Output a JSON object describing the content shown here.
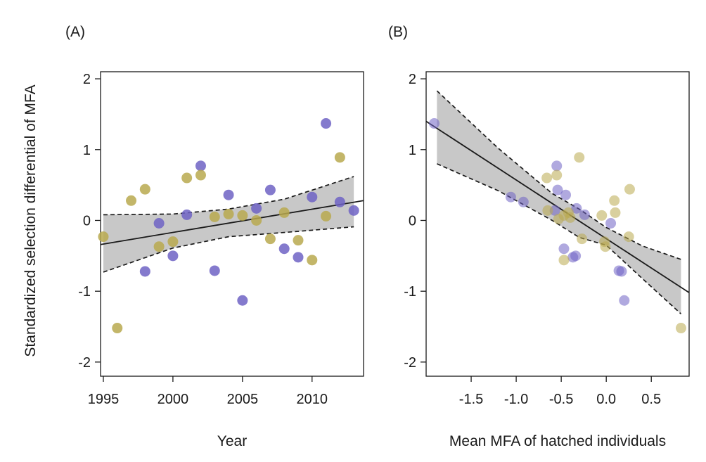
{
  "colors": {
    "purple": "#6f63c4",
    "gold": "#b9a94f",
    "band": "#c8c8c8"
  },
  "shared_ylabel": "Standardized selection differential of MFA",
  "chart_data": [
    {
      "type": "scatter",
      "panel_label": "(A)",
      "xlabel": "Year",
      "ylabel": "Standardized selection differential of MFA",
      "xlim": [
        1994.8,
        2013.7
      ],
      "ylim": [
        -2.2,
        2.1
      ],
      "xticks": [
        1995,
        2000,
        2005,
        2010
      ],
      "yticks": [
        -2,
        -1,
        0,
        1,
        2
      ],
      "grid": false,
      "point_opacity": 0.85,
      "series": [
        {
          "color": "purple",
          "points": [
            [
              1998,
              -0.72
            ],
            [
              1999,
              -0.04
            ],
            [
              2000,
              -0.5
            ],
            [
              2001,
              0.08
            ],
            [
              2002,
              0.77
            ],
            [
              2003,
              -0.71
            ],
            [
              2004,
              0.36
            ],
            [
              2005,
              -1.13
            ],
            [
              2006,
              0.17
            ],
            [
              2007,
              0.43
            ],
            [
              2008,
              -0.4
            ],
            [
              2009,
              -0.52
            ],
            [
              2010,
              0.33
            ],
            [
              2011,
              1.37
            ],
            [
              2012,
              0.26
            ],
            [
              2013,
              0.14
            ]
          ]
        },
        {
          "color": "gold",
          "points": [
            [
              1995,
              -0.23
            ],
            [
              1996,
              -1.52
            ],
            [
              1997,
              0.28
            ],
            [
              1998,
              0.44
            ],
            [
              1999,
              -0.37
            ],
            [
              2000,
              -0.3
            ],
            [
              2001,
              0.6
            ],
            [
              2002,
              0.64
            ],
            [
              2003,
              0.05
            ],
            [
              2004,
              0.09
            ],
            [
              2005,
              0.07
            ],
            [
              2006,
              0.0
            ],
            [
              2007,
              -0.26
            ],
            [
              2008,
              0.11
            ],
            [
              2009,
              -0.28
            ],
            [
              2010,
              -0.56
            ],
            [
              2011,
              0.06
            ],
            [
              2012,
              0.89
            ]
          ]
        }
      ],
      "fit_line": [
        [
          1994.8,
          -0.34
        ],
        [
          2013.7,
          0.28
        ]
      ],
      "confidence_band": {
        "upper": [
          [
            1995,
            0.08
          ],
          [
            2000,
            0.09
          ],
          [
            2004,
            0.16
          ],
          [
            2008,
            0.3
          ],
          [
            2013,
            0.62
          ]
        ],
        "lower": [
          [
            1995,
            -0.73
          ],
          [
            2000,
            -0.39
          ],
          [
            2004,
            -0.23
          ],
          [
            2008,
            -0.17
          ],
          [
            2013,
            -0.09
          ]
        ]
      }
    },
    {
      "type": "scatter",
      "panel_label": "(B)",
      "xlabel": "Mean MFA of hatched individuals",
      "ylabel": "",
      "xlim": [
        -2.0,
        0.92
      ],
      "ylim": [
        -2.2,
        2.1
      ],
      "xticks": [
        -1.5,
        -1.0,
        -0.5,
        0.0,
        0.5
      ],
      "xtick_labels": [
        "-1.5",
        "-1.0",
        "-0.5",
        "0.0",
        "0.5"
      ],
      "yticks": [
        -2,
        -1,
        0,
        1,
        2
      ],
      "grid": false,
      "point_opacity": 0.55,
      "series": [
        {
          "color": "purple",
          "points": [
            [
              -1.91,
              1.37
            ],
            [
              -1.06,
              0.33
            ],
            [
              -0.92,
              0.26
            ],
            [
              -0.55,
              0.77
            ],
            [
              -0.54,
              0.43
            ],
            [
              -0.57,
              0.14
            ],
            [
              -0.45,
              0.36
            ],
            [
              -0.33,
              0.17
            ],
            [
              -0.24,
              0.08
            ],
            [
              -0.47,
              -0.4
            ],
            [
              -0.34,
              -0.5
            ],
            [
              -0.37,
              -0.52
            ],
            [
              0.05,
              -0.04
            ],
            [
              0.14,
              -0.71
            ],
            [
              0.17,
              -0.72
            ],
            [
              0.2,
              -1.13
            ]
          ]
        },
        {
          "color": "gold",
          "points": [
            [
              -0.66,
              0.6
            ],
            [
              -0.55,
              0.64
            ],
            [
              -0.3,
              0.89
            ],
            [
              -0.65,
              0.14
            ],
            [
              -0.53,
              0.02
            ],
            [
              -0.47,
              0.07
            ],
            [
              -0.42,
              0.11
            ],
            [
              -0.4,
              0.04
            ],
            [
              -0.05,
              0.07
            ],
            [
              0.09,
              0.28
            ],
            [
              0.1,
              0.11
            ],
            [
              0.26,
              0.44
            ],
            [
              -0.27,
              -0.26
            ],
            [
              -0.02,
              -0.3
            ],
            [
              -0.01,
              -0.37
            ],
            [
              0.25,
              -0.23
            ],
            [
              -0.47,
              -0.56
            ],
            [
              0.83,
              -1.52
            ]
          ]
        }
      ],
      "fit_line": [
        [
          -2.0,
          1.4
        ],
        [
          0.92,
          -1.02
        ]
      ],
      "confidence_band": {
        "upper": [
          [
            -1.88,
            1.83
          ],
          [
            -1.2,
            1.02
          ],
          [
            -0.6,
            0.38
          ],
          [
            -0.3,
            0.16
          ],
          [
            0.0,
            -0.1
          ],
          [
            0.4,
            -0.36
          ],
          [
            0.83,
            -0.55
          ]
        ],
        "lower": [
          [
            -1.88,
            0.8
          ],
          [
            -1.2,
            0.42
          ],
          [
            -0.6,
            0.0
          ],
          [
            -0.3,
            -0.24
          ],
          [
            0.0,
            -0.35
          ],
          [
            0.4,
            -0.82
          ],
          [
            0.83,
            -1.32
          ]
        ]
      }
    }
  ]
}
